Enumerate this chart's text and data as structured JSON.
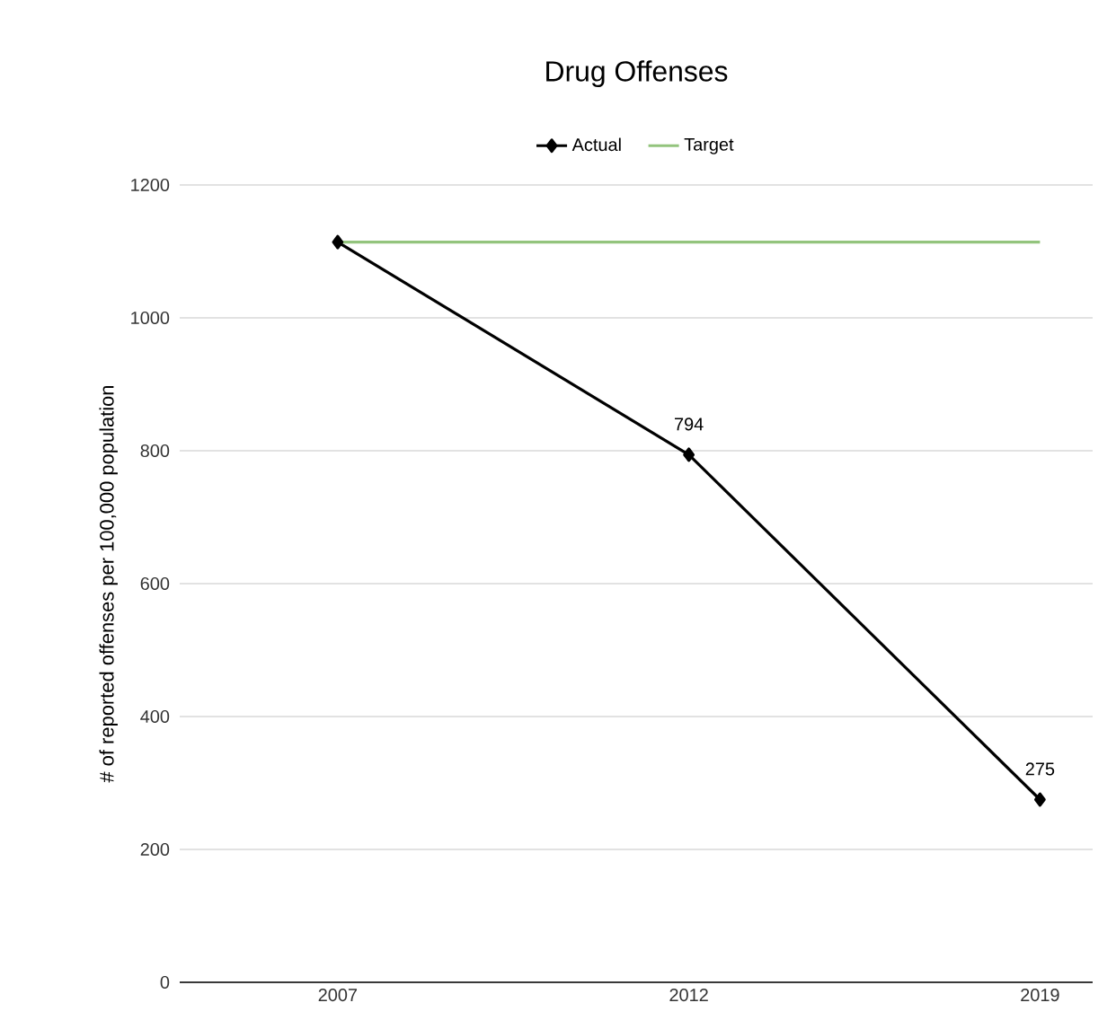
{
  "chart_data": {
    "type": "line",
    "title": "Drug Offenses",
    "ylabel": "# of reported offenses per 100,000 population",
    "categories": [
      "2007",
      "2012",
      "2019"
    ],
    "series": [
      {
        "name": "Actual",
        "color": "#000000",
        "values": [
          1114,
          794,
          275
        ],
        "marker": "diamond",
        "value_labels": [
          null,
          "794",
          "275"
        ]
      },
      {
        "name": "Target",
        "color": "#93c47d",
        "values": [
          1114,
          1114,
          1114
        ],
        "marker": "none"
      }
    ],
    "ylim": [
      0,
      1200
    ],
    "yticks": [
      0,
      200,
      400,
      600,
      800,
      1000,
      1200
    ],
    "grid": "y",
    "legend": "top"
  }
}
